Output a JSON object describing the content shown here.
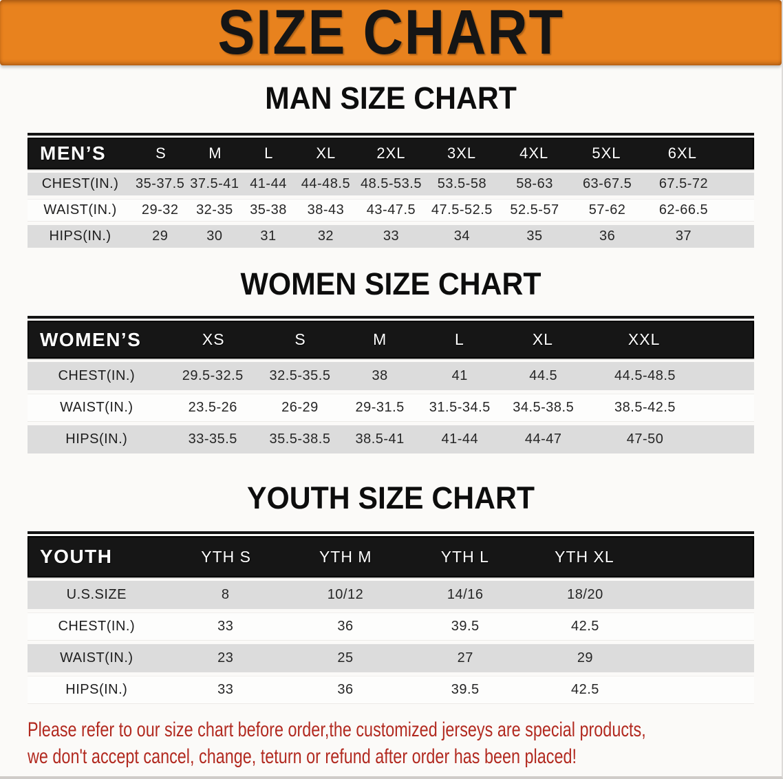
{
  "banner": {
    "title": "SIZE CHART"
  },
  "colors": {
    "banner_bg": "#E8821E",
    "table_header_bg": "#161616",
    "row_gray": "#DCDCDC",
    "disclaimer_red": "#B22A20"
  },
  "sections": [
    {
      "heading": "MAN SIZE CHART",
      "corner_label": "MEN’S",
      "columns": [
        "S",
        "M",
        "L",
        "XL",
        "2XL",
        "3XL",
        "4XL",
        "5XL",
        "6XL"
      ],
      "rows": [
        {
          "label": "CHEST(IN.)",
          "values": [
            "35-37.5",
            "37.5-41",
            "41-44",
            "44-48.5",
            "48.5-53.5",
            "53.5-58",
            "58-63",
            "63-67.5",
            "67.5-72"
          ]
        },
        {
          "label": "WAIST(IN.)",
          "values": [
            "29-32",
            "32-35",
            "35-38",
            "38-43",
            "43-47.5",
            "47.5-52.5",
            "52.5-57",
            "57-62",
            "62-66.5"
          ]
        },
        {
          "label": "HIPS(IN.)",
          "values": [
            "29",
            "30",
            "31",
            "32",
            "33",
            "34",
            "35",
            "36",
            "37"
          ]
        }
      ]
    },
    {
      "heading": "WOMEN SIZE CHART",
      "corner_label": "WOMEN’S",
      "columns": [
        "XS",
        "S",
        "M",
        "L",
        "XL",
        "XXL"
      ],
      "rows": [
        {
          "label": "CHEST(IN.)",
          "values": [
            "29.5-32.5",
            "32.5-35.5",
            "38",
            "41",
            "44.5",
            "44.5-48.5"
          ]
        },
        {
          "label": "WAIST(IN.)",
          "values": [
            "23.5-26",
            "26-29",
            "29-31.5",
            "31.5-34.5",
            "34.5-38.5",
            "38.5-42.5"
          ]
        },
        {
          "label": "HIPS(IN.)",
          "values": [
            "33-35.5",
            "35.5-38.5",
            "38.5-41",
            "41-44",
            "44-47",
            "47-50"
          ]
        }
      ]
    },
    {
      "heading": "YOUTH SIZE CHART",
      "corner_label": "YOUTH",
      "columns": [
        "YTH S",
        "YTH M",
        "YTH L",
        "YTH XL"
      ],
      "rows": [
        {
          "label": "U.S.SIZE",
          "values": [
            "8",
            "10/12",
            "14/16",
            "18/20"
          ]
        },
        {
          "label": "CHEST(IN.)",
          "values": [
            "33",
            "36",
            "39.5",
            "42.5"
          ]
        },
        {
          "label": "WAIST(IN.)",
          "values": [
            "23",
            "25",
            "27",
            "29"
          ]
        },
        {
          "label": "HIPS(IN.)",
          "values": [
            "33",
            "36",
            "39.5",
            "42.5"
          ]
        }
      ]
    }
  ],
  "disclaimer": {
    "line1": "Please refer to our size chart before order,the customized jerseys are special products,",
    "line2": "we don't accept cancel, change, teturn or refund after order has been placed!"
  }
}
